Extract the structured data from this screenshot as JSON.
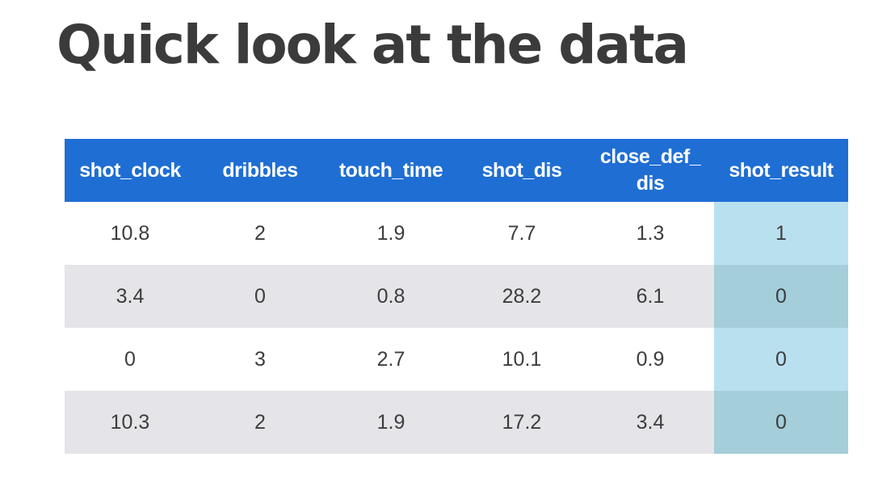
{
  "slide": {
    "title": "Quick look at the data"
  },
  "table": {
    "headers": [
      "shot_clock",
      "dribbles",
      "touch_time",
      "shot_dis",
      "close_def_\ndis",
      "shot_result"
    ],
    "rows": [
      [
        "10.8",
        "2",
        "1.9",
        "7.7",
        "1.3",
        "1"
      ],
      [
        "3.4",
        "0",
        "0.8",
        "28.2",
        "6.1",
        "0"
      ],
      [
        "0",
        "3",
        "2.7",
        "10.1",
        "0.9",
        "0"
      ],
      [
        "10.3",
        "2",
        "1.9",
        "17.2",
        "3.4",
        "0"
      ]
    ]
  },
  "colors": {
    "header_bg": "#1f6ed4",
    "header_text": "#ffffff",
    "row_alt_bg": "#e5e4e8",
    "highlight_col_light": "#b9e0ef",
    "highlight_col_dark": "#a4ced9",
    "title_text": "#3b3b3b"
  }
}
